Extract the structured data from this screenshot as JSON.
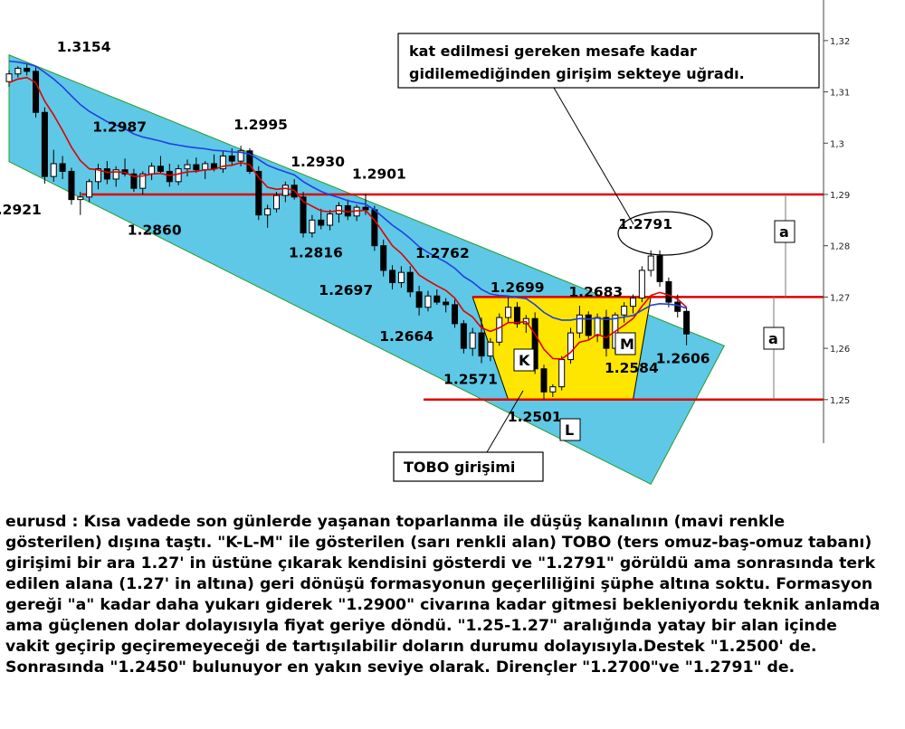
{
  "chart_data": {
    "type": "candlestick",
    "instrument": "eurusd",
    "y_axis": {
      "ylim": [
        1.2415,
        1.3265
      ],
      "ticks": [
        "1,32",
        "1,31",
        "1,3",
        "1,29",
        "1,28",
        "1,27",
        "1,26",
        "1,25"
      ],
      "tick_values": [
        1.32,
        1.31,
        1.3,
        1.29,
        1.28,
        1.27,
        1.26,
        1.25
      ]
    },
    "price_labels": [
      {
        "text": "1.3154",
        "bar": 2,
        "value": 1.3154
      },
      {
        "text": "1.2987",
        "bar": 5,
        "value": 1.2987
      },
      {
        "text": "1.2921",
        "bar": 0,
        "value": 1.2921
      },
      {
        "text": "1.2860",
        "bar": 8,
        "value": 1.286
      },
      {
        "text": "1.2995",
        "bar": 26,
        "value": 1.2995
      },
      {
        "text": "1.2930",
        "bar": 32,
        "value": 1.293
      },
      {
        "text": "1.2901",
        "bar": 40,
        "value": 1.2901
      },
      {
        "text": "1.2816",
        "bar": 33,
        "value": 1.2816
      },
      {
        "text": "1.2762",
        "bar": 47,
        "value": 1.2762
      },
      {
        "text": "1.2697",
        "bar": 38,
        "value": 1.2697
      },
      {
        "text": "1.2664",
        "bar": 45,
        "value": 1.2664
      },
      {
        "text": "1.2699",
        "bar": 55,
        "value": 1.2699
      },
      {
        "text": "1.2683",
        "bar": 64,
        "value": 1.2683
      },
      {
        "text": "1.2571",
        "bar": 53,
        "value": 1.2571
      },
      {
        "text": "1.2584",
        "bar": 67,
        "value": 1.2584
      },
      {
        "text": "1.2606",
        "bar": 75,
        "value": 1.2606
      },
      {
        "text": "1.2501",
        "bar": 61,
        "value": 1.2501
      },
      {
        "text": "1.2791",
        "bar": 72,
        "value": 1.2791
      }
    ],
    "horizontal_levels": [
      {
        "value": 1.29,
        "color": "#e00000"
      },
      {
        "value": 1.27,
        "color": "#e00000"
      },
      {
        "value": 1.25,
        "color": "#e00000"
      }
    ],
    "channel": {
      "color": "#5ec8e6",
      "upper": [
        [
          0,
          1.3172
        ],
        [
          78,
          1.2605
        ]
      ],
      "lower": [
        [
          0,
          1.2964
        ],
        [
          72,
          1.2335
        ]
      ]
    },
    "pattern": {
      "name": "TOBO",
      "color": "#ffe600",
      "labels": [
        "K",
        "L",
        "M"
      ],
      "neckline": 1.27,
      "base": 1.25
    },
    "measure": {
      "label": "a",
      "targets": [
        1.29,
        1.27
      ]
    },
    "series": [
      {
        "type": "ohlc",
        "values": [
          [
            1.312,
            1.3142,
            1.311,
            1.3135
          ],
          [
            1.3135,
            1.315,
            1.3128,
            1.3146
          ],
          [
            1.3146,
            1.3154,
            1.3132,
            1.314
          ],
          [
            1.314,
            1.3148,
            1.305,
            1.306
          ],
          [
            1.306,
            1.307,
            1.2921,
            1.2935
          ],
          [
            1.2935,
            1.2987,
            1.2925,
            1.296
          ],
          [
            1.296,
            1.2975,
            1.293,
            1.2945
          ],
          [
            1.2945,
            1.2952,
            1.288,
            1.289
          ],
          [
            1.289,
            1.2905,
            1.286,
            1.2895
          ],
          [
            1.2895,
            1.293,
            1.2885,
            1.2925
          ],
          [
            1.2925,
            1.296,
            1.291,
            1.295
          ],
          [
            1.295,
            1.2965,
            1.292,
            1.293
          ],
          [
            1.293,
            1.2955,
            1.2915,
            1.2948
          ],
          [
            1.2948,
            1.297,
            1.2935,
            1.294
          ],
          [
            1.294,
            1.295,
            1.2905,
            1.2912
          ],
          [
            1.2912,
            1.2945,
            1.29,
            1.294
          ],
          [
            1.294,
            1.2962,
            1.2928,
            1.2955
          ],
          [
            1.2955,
            1.2975,
            1.294,
            1.2945
          ],
          [
            1.2945,
            1.296,
            1.2915,
            1.2925
          ],
          [
            1.2925,
            1.2958,
            1.2918,
            1.295
          ],
          [
            1.295,
            1.2968,
            1.2935,
            1.2958
          ],
          [
            1.2958,
            1.2972,
            1.2942,
            1.2948
          ],
          [
            1.2948,
            1.2965,
            1.293,
            1.296
          ],
          [
            1.296,
            1.2978,
            1.2945,
            1.295
          ],
          [
            1.295,
            1.2985,
            1.2942,
            1.2975
          ],
          [
            1.2975,
            1.299,
            1.2958,
            1.2965
          ],
          [
            1.2965,
            1.2995,
            1.2955,
            1.2985
          ],
          [
            1.2985,
            1.299,
            1.294,
            1.2945
          ],
          [
            1.2945,
            1.2955,
            1.285,
            1.286
          ],
          [
            1.286,
            1.288,
            1.2835,
            1.2872
          ],
          [
            1.2872,
            1.2905,
            1.2865,
            1.2898
          ],
          [
            1.2898,
            1.2925,
            1.2885,
            1.2918
          ],
          [
            1.2918,
            1.293,
            1.289,
            1.2895
          ],
          [
            1.2895,
            1.2905,
            1.2816,
            1.2825
          ],
          [
            1.2825,
            1.286,
            1.2816,
            1.285
          ],
          [
            1.285,
            1.2872,
            1.2832,
            1.284
          ],
          [
            1.284,
            1.287,
            1.283,
            1.2862
          ],
          [
            1.2862,
            1.2885,
            1.2845,
            1.2878
          ],
          [
            1.2878,
            1.289,
            1.285,
            1.2858
          ],
          [
            1.2858,
            1.288,
            1.2848,
            1.2875
          ],
          [
            1.2875,
            1.2901,
            1.286,
            1.287
          ],
          [
            1.287,
            1.2878,
            1.279,
            1.28
          ],
          [
            1.28,
            1.2812,
            1.274,
            1.2752
          ],
          [
            1.2752,
            1.2762,
            1.2715,
            1.2728
          ],
          [
            1.2728,
            1.276,
            1.2718,
            1.2748
          ],
          [
            1.2748,
            1.276,
            1.27,
            1.271
          ],
          [
            1.271,
            1.2722,
            1.2664,
            1.268
          ],
          [
            1.268,
            1.2712,
            1.2672,
            1.2702
          ],
          [
            1.2702,
            1.2715,
            1.2685,
            1.269
          ],
          [
            1.269,
            1.2698,
            1.267,
            1.2685
          ],
          [
            1.2685,
            1.2695,
            1.264,
            1.2648
          ],
          [
            1.2648,
            1.2655,
            1.259,
            1.26
          ],
          [
            1.26,
            1.264,
            1.2585,
            1.263
          ],
          [
            1.263,
            1.266,
            1.2571,
            1.2585
          ],
          [
            1.2585,
            1.262,
            1.2575,
            1.2612
          ],
          [
            1.2612,
            1.2668,
            1.2605,
            1.266
          ],
          [
            1.266,
            1.2699,
            1.265,
            1.268
          ],
          [
            1.268,
            1.269,
            1.264,
            1.2648
          ],
          [
            1.2648,
            1.2665,
            1.263,
            1.2658
          ],
          [
            1.2658,
            1.267,
            1.255,
            1.256
          ],
          [
            1.256,
            1.2568,
            1.2501,
            1.2515
          ],
          [
            1.2515,
            1.253,
            1.2505,
            1.2525
          ],
          [
            1.2525,
            1.2585,
            1.2518,
            1.2578
          ],
          [
            1.2578,
            1.264,
            1.257,
            1.263
          ],
          [
            1.263,
            1.2683,
            1.262,
            1.2665
          ],
          [
            1.2665,
            1.2672,
            1.2618,
            1.2625
          ],
          [
            1.2625,
            1.2668,
            1.2612,
            1.266
          ],
          [
            1.266,
            1.2675,
            1.2584,
            1.26
          ],
          [
            1.26,
            1.267,
            1.259,
            1.2665
          ],
          [
            1.2665,
            1.269,
            1.265,
            1.2682
          ],
          [
            1.2682,
            1.2705,
            1.2668,
            1.2698
          ],
          [
            1.2698,
            1.276,
            1.269,
            1.2752
          ],
          [
            1.2752,
            1.2791,
            1.274,
            1.278
          ],
          [
            1.278,
            1.2791,
            1.272,
            1.273
          ],
          [
            1.273,
            1.2738,
            1.268,
            1.269
          ],
          [
            1.269,
            1.2705,
            1.266,
            1.2672
          ],
          [
            1.2672,
            1.268,
            1.2606,
            1.2628
          ]
        ]
      },
      {
        "type": "line",
        "color": "#e00000",
        "values": [
          1.3118,
          1.3125,
          1.3128,
          1.3118,
          1.3082,
          1.3055,
          1.3025,
          1.2992,
          1.2966,
          1.295,
          1.2948,
          1.2943,
          1.2944,
          1.2943,
          1.2935,
          1.2936,
          1.294,
          1.2941,
          1.2937,
          1.294,
          1.2944,
          1.2945,
          1.2948,
          1.2949,
          1.2955,
          1.2957,
          1.2962,
          1.2958,
          1.2933,
          1.2914,
          1.291,
          1.2912,
          1.2908,
          1.2886,
          1.2877,
          1.2868,
          1.2866,
          1.2869,
          1.2866,
          1.2868,
          1.2869,
          1.285,
          1.2825,
          1.28,
          1.2785,
          1.2765,
          1.2743,
          1.2732,
          1.2722,
          1.2713,
          1.2698,
          1.2673,
          1.2661,
          1.264,
          1.2633,
          1.264,
          1.265,
          1.265,
          1.2652,
          1.2628,
          1.2598,
          1.258,
          1.2579,
          1.2592,
          1.2612,
          1.2616,
          1.2627,
          1.2621,
          1.2633,
          1.2645,
          1.2658,
          1.2682,
          1.2703,
          1.2709,
          1.2704,
          1.2696,
          1.268
        ]
      },
      {
        "type": "line",
        "color": "#2040e0",
        "values": [
          1.316,
          1.3158,
          1.3155,
          1.315,
          1.3138,
          1.3125,
          1.311,
          1.3092,
          1.3075,
          1.3062,
          1.3052,
          1.3042,
          1.3035,
          1.3028,
          1.3018,
          1.3012,
          1.3008,
          1.3004,
          1.2999,
          1.2996,
          1.2993,
          1.2991,
          1.2989,
          1.2986,
          1.2985,
          1.2983,
          1.2982,
          1.2979,
          1.2968,
          1.2957,
          1.295,
          1.2944,
          1.2938,
          1.2925,
          1.2915,
          1.2906,
          1.2899,
          1.2894,
          1.2888,
          1.2884,
          1.2881,
          1.287,
          1.2855,
          1.284,
          1.2828,
          1.2814,
          1.2798,
          1.2787,
          1.2777,
          1.2768,
          1.2756,
          1.274,
          1.2729,
          1.2715,
          1.2706,
          1.2703,
          1.2702,
          1.2699,
          1.2697,
          1.2685,
          1.267,
          1.266,
          1.2655,
          1.2655,
          1.2658,
          1.2657,
          1.2659,
          1.2656,
          1.2658,
          1.2661,
          1.2664,
          1.2674,
          1.2684,
          1.2687,
          1.2686,
          1.2684,
          1.2678
        ]
      }
    ]
  },
  "annotations": {
    "callout_top": "kat edilmesi gereken mesafe kadar\ngidilemediğinden girişim sekteye uğradı.",
    "callout_bottom": "TOBO girişimi",
    "label_k": "K",
    "label_l": "L",
    "label_m": "M",
    "label_a1": "a",
    "label_a2": "a"
  },
  "description": "eurusd : Kısa vadede son günlerde yaşanan toparlanma ile düşüş kanalının (mavi renkle gösterilen) dışına taştı. \"K-L-M\" ile gösterilen (sarı renkli alan) TOBO (ters omuz-baş-omuz tabanı) girişimi bir ara 1.27' in üstüne çıkarak kendisini gösterdi ve \"1.2791\" görüldü ama sonrasında terk edilen alana (1.27' in altına) geri dönüşü formasyonun geçerliliğini şüphe altına soktu. Formasyon gereği \"a\" kadar daha yukarı giderek \"1.2900\" civarına kadar gitmesi bekleniyordu teknik anlamda ama güçlenen dolar dolayısıyla fiyat geriye döndü. \"1.25-1.27\" aralığında yatay bir alan içinde vakit geçirip geçiremeyeceği de tartışılabilir doların durumu dolayısıyla.Destek \"1.2500' de. Sonrasında \"1.2450\" bulunuyor en yakın seviye olarak. Dirençler \"1.2700\"ve \"1.2791\" de."
}
